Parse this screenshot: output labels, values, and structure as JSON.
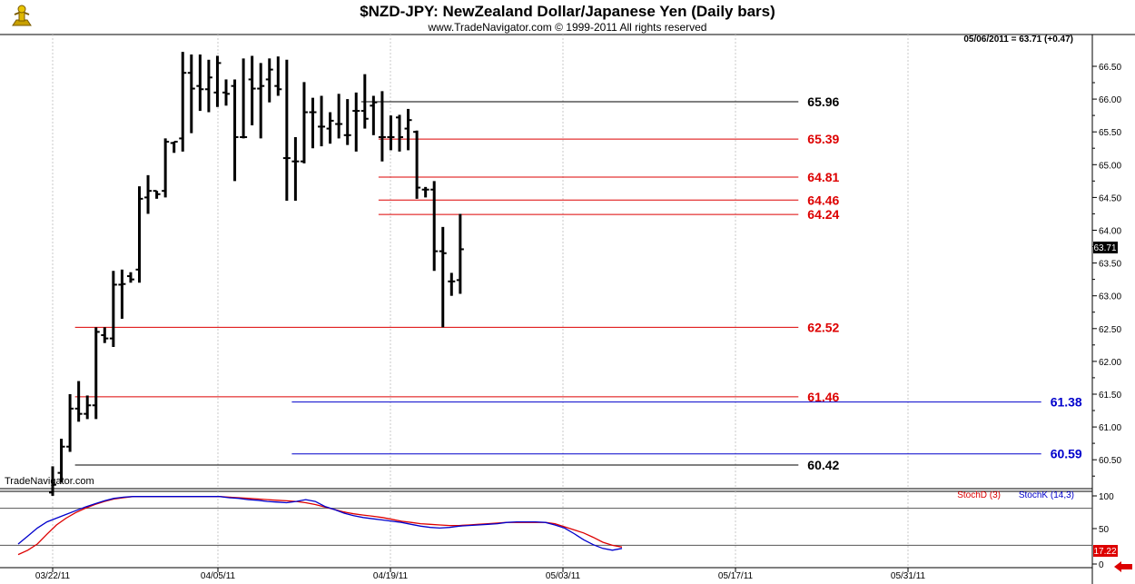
{
  "header": {
    "title": "$NZD-JPY:  NewZealand Dollar/Japanese Yen  (Daily bars)",
    "subtitle": "www.TradeNavigator.com © 1999-2011 All rights reserved",
    "status": "05/06/2011 = 63.71 (+0.47)",
    "watermark": "TradeNavigator.com"
  },
  "icons": {
    "logo": "trophy-icon",
    "nav_arrow": "left-arrow-icon"
  },
  "colors": {
    "price_bar": "#000000",
    "red_level": "#dd0000",
    "black_level": "#000000",
    "blue_level": "#0000cc",
    "stoch_d": "#dd0000",
    "stoch_k": "#0000cc"
  },
  "chart_data": [
    {
      "type": "ohlc",
      "title": "$NZD-JPY:  NewZealand Dollar/Japanese Yen  (Daily bars)",
      "price_axis": {
        "ticks": [
          "66.50",
          "66.00",
          "65.50",
          "65.00",
          "64.50",
          "64.00",
          "63.50",
          "63.00",
          "62.50",
          "62.00",
          "61.50",
          "61.00",
          "60.50"
        ],
        "ylim": [
          60.25,
          66.7
        ],
        "last_price_label": "63.71"
      },
      "x_axis": {
        "tick_labels": [
          "03/22/11",
          "04/05/11",
          "04/19/11",
          "05/03/11",
          "05/17/11",
          "05/31/11"
        ]
      },
      "bars": [
        {
          "o": 60.0,
          "h": 60.4,
          "l": 59.95,
          "c": 60.12
        },
        {
          "o": 60.3,
          "h": 60.82,
          "l": 60.15,
          "c": 60.7
        },
        {
          "o": 60.7,
          "h": 61.5,
          "l": 60.62,
          "c": 61.28
        },
        {
          "o": 61.28,
          "h": 61.7,
          "l": 61.08,
          "c": 61.2
        },
        {
          "o": 61.2,
          "h": 61.48,
          "l": 61.12,
          "c": 61.33
        },
        {
          "o": 61.33,
          "h": 62.52,
          "l": 61.12,
          "c": 62.45
        },
        {
          "o": 62.4,
          "h": 62.52,
          "l": 62.28,
          "c": 62.35
        },
        {
          "o": 62.35,
          "h": 63.38,
          "l": 62.22,
          "c": 63.17
        },
        {
          "o": 63.17,
          "h": 63.4,
          "l": 62.65,
          "c": 63.18
        },
        {
          "o": 63.3,
          "h": 63.36,
          "l": 63.2,
          "c": 63.25
        },
        {
          "o": 63.4,
          "h": 64.67,
          "l": 63.2,
          "c": 64.48
        },
        {
          "o": 64.5,
          "h": 64.84,
          "l": 64.25,
          "c": 64.6
        },
        {
          "o": 64.6,
          "h": 64.6,
          "l": 64.48,
          "c": 64.55
        },
        {
          "o": 64.6,
          "h": 65.4,
          "l": 64.5,
          "c": 65.35
        },
        {
          "o": 65.33,
          "h": 65.35,
          "l": 65.18,
          "c": 65.35
        },
        {
          "o": 65.4,
          "h": 66.72,
          "l": 65.2,
          "c": 66.4
        },
        {
          "o": 66.4,
          "h": 66.68,
          "l": 65.48,
          "c": 66.16
        },
        {
          "o": 66.2,
          "h": 66.68,
          "l": 65.82,
          "c": 66.15
        },
        {
          "o": 66.15,
          "h": 66.6,
          "l": 65.8,
          "c": 66.33
        },
        {
          "o": 66.1,
          "h": 66.66,
          "l": 65.88,
          "c": 66.55
        },
        {
          "o": 66.1,
          "h": 66.3,
          "l": 65.9,
          "c": 66.08
        },
        {
          "o": 66.2,
          "h": 66.3,
          "l": 64.75,
          "c": 65.42
        },
        {
          "o": 65.42,
          "h": 66.62,
          "l": 65.4,
          "c": 65.42
        },
        {
          "o": 66.3,
          "h": 66.66,
          "l": 65.6,
          "c": 66.16
        },
        {
          "o": 66.16,
          "h": 66.55,
          "l": 65.4,
          "c": 66.2
        },
        {
          "o": 66.3,
          "h": 66.62,
          "l": 65.95,
          "c": 66.45
        },
        {
          "o": 66.2,
          "h": 66.65,
          "l": 66.05,
          "c": 66.15
        },
        {
          "o": 65.1,
          "h": 66.6,
          "l": 64.45,
          "c": 65.1
        },
        {
          "o": 65.05,
          "h": 65.42,
          "l": 64.45,
          "c": 65.05
        },
        {
          "o": 65.05,
          "h": 66.26,
          "l": 65.02,
          "c": 65.8
        },
        {
          "o": 65.8,
          "h": 66.02,
          "l": 65.25,
          "c": 65.8
        },
        {
          "o": 65.58,
          "h": 66.05,
          "l": 65.28,
          "c": 65.58
        },
        {
          "o": 65.55,
          "h": 65.8,
          "l": 65.32,
          "c": 65.67
        },
        {
          "o": 65.62,
          "h": 66.08,
          "l": 65.4,
          "c": 65.62
        },
        {
          "o": 65.45,
          "h": 66.0,
          "l": 65.3,
          "c": 65.45
        },
        {
          "o": 65.82,
          "h": 66.1,
          "l": 65.2,
          "c": 65.82
        },
        {
          "o": 65.82,
          "h": 66.38,
          "l": 65.55,
          "c": 65.7
        },
        {
          "o": 65.9,
          "h": 66.05,
          "l": 65.45,
          "c": 65.95
        },
        {
          "o": 65.42,
          "h": 66.12,
          "l": 65.05,
          "c": 65.42
        },
        {
          "o": 65.42,
          "h": 65.75,
          "l": 65.22,
          "c": 65.42
        },
        {
          "o": 65.72,
          "h": 65.76,
          "l": 65.2,
          "c": 65.42
        },
        {
          "o": 65.55,
          "h": 65.85,
          "l": 65.22,
          "c": 65.68
        },
        {
          "o": 65.5,
          "h": 65.52,
          "l": 64.48,
          "c": 64.65
        },
        {
          "o": 64.62,
          "h": 64.66,
          "l": 64.5,
          "c": 64.62
        },
        {
          "o": 64.62,
          "h": 64.75,
          "l": 63.38,
          "c": 63.68
        },
        {
          "o": 63.68,
          "h": 64.05,
          "l": 62.52,
          "c": 63.65
        },
        {
          "o": 63.22,
          "h": 63.35,
          "l": 63.0,
          "c": 63.22
        },
        {
          "o": 63.24,
          "h": 64.25,
          "l": 63.03,
          "c": 63.71
        }
      ],
      "levels": [
        {
          "value": 65.96,
          "label": "65.96",
          "color": "#000000",
          "start_bar": 36,
          "end_bar": 86
        },
        {
          "value": 65.39,
          "label": "65.39",
          "color": "#dd0000",
          "start_bar": 38,
          "end_bar": 86
        },
        {
          "value": 64.81,
          "label": "64.81",
          "color": "#dd0000",
          "start_bar": 38,
          "end_bar": 86
        },
        {
          "value": 64.46,
          "label": "64.46",
          "color": "#dd0000",
          "start_bar": 38,
          "end_bar": 86
        },
        {
          "value": 64.24,
          "label": "64.24",
          "color": "#dd0000",
          "start_bar": 38,
          "end_bar": 86
        },
        {
          "value": 62.52,
          "label": "62.52",
          "color": "#dd0000",
          "start_bar": 3,
          "end_bar": 86
        },
        {
          "value": 61.46,
          "label": "61.46",
          "color": "#dd0000",
          "start_bar": 3,
          "end_bar": 86
        },
        {
          "value": 60.42,
          "label": "60.42",
          "color": "#000000",
          "start_bar": 3,
          "end_bar": 86
        },
        {
          "value": 61.38,
          "label": "61.38",
          "color": "#0000cc",
          "start_bar": 28,
          "end_bar": 114
        },
        {
          "value": 60.59,
          "label": "60.59",
          "color": "#0000cc",
          "start_bar": 28,
          "end_bar": 114
        }
      ]
    },
    {
      "type": "line",
      "legend": [
        "StochD (3)",
        "StochK (14,3)"
      ],
      "y_ticks": [
        "100",
        "50",
        "0"
      ],
      "ylim": [
        0,
        100
      ],
      "last_value_label": "17.22",
      "series": [
        {
          "name": "StochD (3)",
          "color": "#dd0000",
          "values": [
            5,
            12,
            22,
            38,
            53,
            64,
            73,
            80,
            86,
            91,
            95,
            97,
            99,
            99,
            99,
            99,
            99,
            99,
            99,
            99,
            99,
            99,
            98,
            97,
            96,
            95,
            94,
            93,
            92,
            91,
            89,
            86,
            82,
            78,
            74,
            71,
            69,
            67,
            65,
            62,
            59,
            57,
            55,
            54,
            53,
            52,
            52,
            53,
            54,
            55,
            56,
            57,
            57,
            57,
            57,
            57,
            55,
            50,
            45,
            40,
            33,
            25,
            20,
            17.2
          ]
        },
        {
          "name": "StochK (14,3)",
          "color": "#0000cc",
          "values": [
            22,
            35,
            48,
            58,
            64,
            70,
            76,
            82,
            87,
            92,
            96,
            98,
            99,
            99,
            99,
            99,
            99,
            99,
            99,
            99,
            99,
            99,
            97,
            96,
            94,
            93,
            91,
            90,
            89,
            91,
            94,
            91,
            83,
            78,
            72,
            68,
            65,
            63,
            61,
            59,
            57,
            54,
            51,
            49,
            48,
            49,
            51,
            52,
            53,
            54,
            55,
            57,
            58,
            58,
            58,
            57,
            53,
            48,
            39,
            29,
            21,
            15,
            12,
            15
          ]
        }
      ]
    }
  ]
}
